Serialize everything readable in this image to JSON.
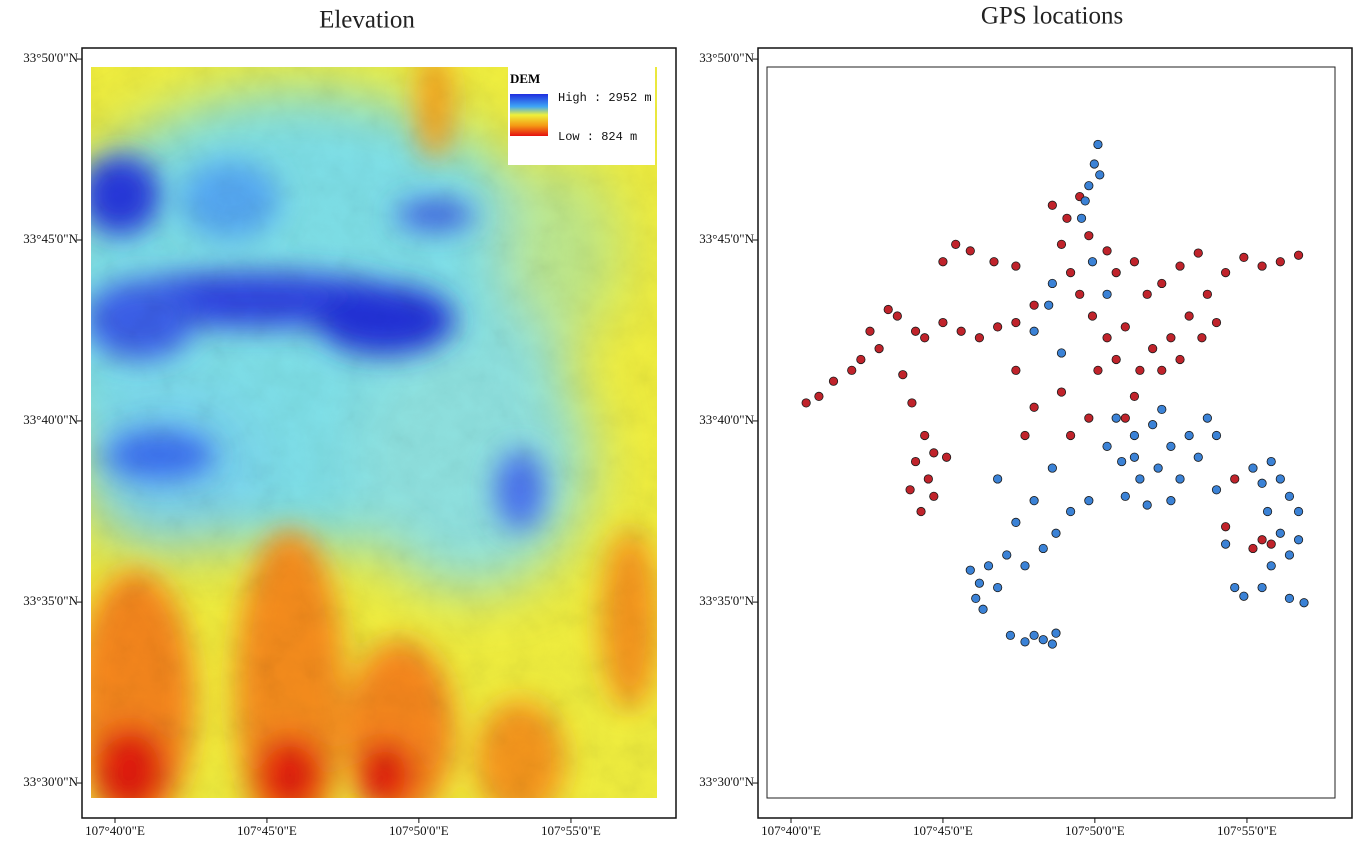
{
  "xlim": [
    107.6486,
    107.9743
  ],
  "ylim": [
    33.4839,
    33.8384
  ],
  "xticks": [
    {
      "value": 107.6667,
      "label": "107°40'0\"E"
    },
    {
      "value": 107.75,
      "label": "107°45'0\"E"
    },
    {
      "value": 107.8333,
      "label": "107°50'0\"E"
    },
    {
      "value": 107.9167,
      "label": "107°55'0\"E"
    }
  ],
  "yticks": [
    {
      "value": 33.5,
      "label": "33°30'0\"N"
    },
    {
      "value": 33.5833,
      "label": "33°35'0\"N"
    },
    {
      "value": 33.6667,
      "label": "33°40'0\"N"
    },
    {
      "value": 33.75,
      "label": "33°45'0\"N"
    },
    {
      "value": 33.8333,
      "label": "33°50'0\"N"
    }
  ],
  "maps": [
    {
      "title": "Elevation",
      "legend": {
        "title": "DEM",
        "high": "High : 2952 m",
        "low": "Low : 824 m"
      }
    },
    {
      "title": "GPS locations",
      "points": [
        {
          "color": "#c0232b",
          "lon": [
            107.81,
            107.818,
            107.825,
            107.83,
            107.815,
            107.84,
            107.845,
            107.855,
            107.862,
            107.87,
            107.88,
            107.89,
            107.895,
            107.885,
            107.875,
            107.865,
            107.85,
            107.858,
            107.845,
            107.87,
            107.88,
            107.892,
            107.9,
            107.905,
            107.915,
            107.925,
            107.935,
            107.945,
            107.84,
            107.832,
            107.825,
            107.82,
            107.835,
            107.855,
            107.85,
            107.83,
            107.82,
            107.815,
            107.757,
            107.765,
            107.75,
            107.778,
            107.79,
            107.8,
            107.79,
            107.78,
            107.77,
            107.76,
            107.75,
            107.74,
            107.735,
            107.725,
            107.72,
            107.71,
            107.715,
            107.705,
            107.7,
            107.69,
            107.682,
            107.675,
            107.728,
            107.733,
            107.74,
            107.745,
            107.735,
            107.742,
            107.732,
            107.738,
            107.745,
            107.752,
            107.795,
            107.8,
            107.79,
            107.905,
            107.91,
            107.92,
            107.925,
            107.93
          ],
          "lat": [
            33.766,
            33.76,
            33.77,
            33.752,
            33.748,
            33.745,
            33.735,
            33.74,
            33.725,
            33.73,
            33.738,
            33.744,
            33.725,
            33.715,
            33.705,
            33.7,
            33.71,
            33.69,
            33.695,
            33.69,
            33.695,
            33.705,
            33.712,
            33.735,
            33.742,
            33.738,
            33.74,
            33.743,
            33.705,
            33.715,
            33.725,
            33.735,
            33.69,
            33.678,
            33.668,
            33.668,
            33.66,
            33.68,
            33.748,
            33.745,
            33.74,
            33.74,
            33.738,
            33.72,
            33.712,
            33.71,
            33.705,
            33.708,
            33.712,
            33.705,
            33.708,
            33.715,
            33.718,
            33.708,
            33.7,
            33.695,
            33.69,
            33.685,
            33.678,
            33.675,
            33.688,
            33.675,
            33.66,
            33.652,
            33.648,
            33.64,
            33.635,
            33.625,
            33.632,
            33.65,
            33.66,
            33.673,
            33.69,
            33.618,
            33.64,
            33.608,
            33.612,
            33.61
          ]
        },
        {
          "color": "#3b82d6",
          "lon": [
            107.835,
            107.833,
            107.83,
            107.828,
            107.836,
            107.826,
            107.81,
            107.808,
            107.8,
            107.815,
            107.832,
            107.84,
            107.845,
            107.855,
            107.865,
            107.875,
            107.868,
            107.858,
            107.848,
            107.88,
            107.875,
            107.862,
            107.85,
            107.855,
            107.87,
            107.885,
            107.89,
            107.84,
            107.895,
            107.9,
            107.83,
            107.82,
            107.812,
            107.805,
            107.795,
            107.785,
            107.775,
            107.78,
            107.77,
            107.765,
            107.768,
            107.772,
            107.79,
            107.8,
            107.78,
            107.81,
            107.795,
            107.8,
            107.805,
            107.812,
            107.81,
            107.787,
            107.92,
            107.925,
            107.93,
            107.935,
            107.94,
            107.928,
            107.935,
            107.94,
            107.945,
            107.93,
            107.925,
            107.94,
            107.948,
            107.91,
            107.915,
            107.945,
            107.9,
            107.905
          ],
          "lat": [
            33.794,
            33.785,
            33.775,
            33.768,
            33.78,
            33.76,
            33.73,
            33.72,
            33.708,
            33.698,
            33.74,
            33.725,
            33.668,
            33.66,
            33.665,
            33.655,
            33.645,
            33.64,
            33.648,
            33.64,
            33.63,
            33.628,
            33.632,
            33.65,
            33.672,
            33.66,
            33.65,
            33.655,
            33.668,
            33.66,
            33.63,
            33.625,
            33.615,
            33.608,
            33.6,
            33.605,
            33.6,
            33.59,
            33.592,
            33.598,
            33.585,
            33.58,
            33.62,
            33.63,
            33.64,
            33.645,
            33.565,
            33.568,
            33.566,
            33.569,
            33.564,
            33.568,
            33.645,
            33.638,
            33.648,
            33.64,
            33.632,
            33.625,
            33.615,
            33.605,
            33.612,
            33.6,
            33.59,
            33.585,
            33.583,
            33.59,
            33.586,
            33.625,
            33.635,
            33.61
          ]
        }
      ]
    }
  ]
}
